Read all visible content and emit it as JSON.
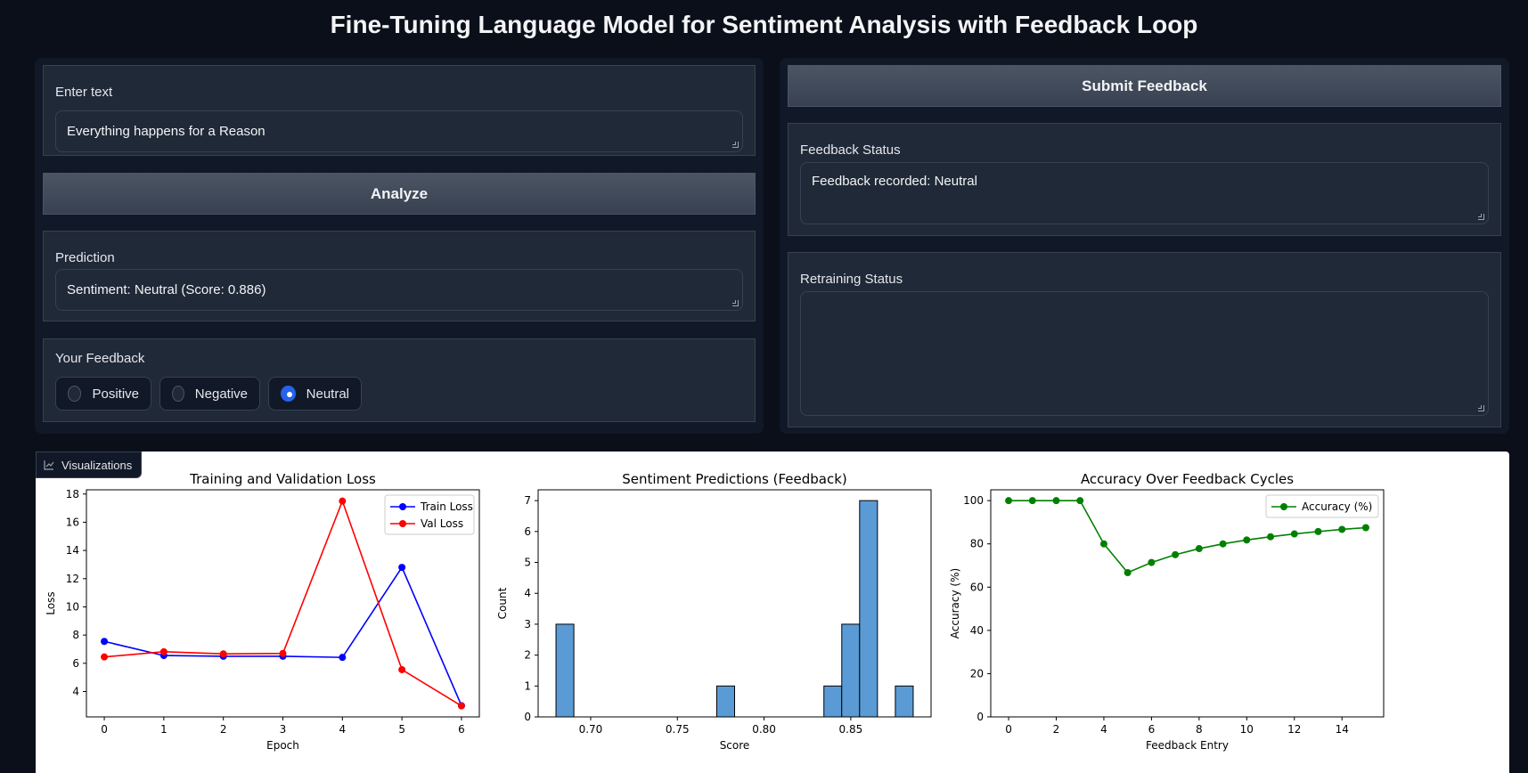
{
  "title": "Fine-Tuning Language Model for Sentiment Analysis with Feedback Loop",
  "input": {
    "label": "Enter text",
    "value": "Everything happens for a Reason"
  },
  "analyze_label": "Analyze",
  "prediction": {
    "label": "Prediction",
    "value": "Sentiment: Neutral (Score: 0.886)"
  },
  "feedback": {
    "label": "Your Feedback",
    "options": [
      "Positive",
      "Negative",
      "Neutral"
    ],
    "selected": "Neutral"
  },
  "submit_label": "Submit Feedback",
  "feedback_status": {
    "label": "Feedback Status",
    "value": "Feedback recorded: Neutral"
  },
  "retraining_status": {
    "label": "Retraining Status",
    "value": ""
  },
  "visualizations_label": "Visualizations",
  "colors": {
    "accent": "#2563eb",
    "train": "#0000ff",
    "val": "#ff0000",
    "hist": "#5a9bd5",
    "acc": "#008000"
  },
  "chart_data": [
    {
      "type": "line",
      "title": "Training and Validation Loss",
      "xlabel": "Epoch",
      "ylabel": "Loss",
      "x": [
        0,
        1,
        2,
        3,
        4,
        5,
        6
      ],
      "xticks": [
        0,
        1,
        2,
        3,
        4,
        5,
        6
      ],
      "yticks": [
        4,
        6,
        8,
        10,
        12,
        14,
        16,
        18
      ],
      "xlim": [
        -0.3,
        6.3
      ],
      "ylim": [
        2.2,
        18.3
      ],
      "series": [
        {
          "name": "Train Loss",
          "values": [
            7.55,
            6.55,
            6.5,
            6.5,
            6.42,
            12.8,
            3.0
          ]
        },
        {
          "name": "Val Loss",
          "values": [
            6.45,
            6.82,
            6.67,
            6.7,
            17.5,
            5.55,
            2.98
          ]
        }
      ],
      "legend": "top-right"
    },
    {
      "type": "bar",
      "title": "Sentiment Predictions (Feedback)",
      "xlabel": "Score",
      "ylabel": "Count",
      "bin_edges": [
        0.68,
        0.6903,
        0.7006,
        0.7109,
        0.7212,
        0.7315,
        0.7418,
        0.7521,
        0.7624,
        0.7727,
        0.783,
        0.7933,
        0.8036,
        0.8139,
        0.8242,
        0.8345,
        0.8448,
        0.8551,
        0.8654,
        0.8757,
        0.886
      ],
      "counts": [
        3,
        0,
        0,
        0,
        0,
        0,
        0,
        0,
        0,
        1,
        0,
        0,
        0,
        0,
        0,
        1,
        3,
        7,
        0,
        1
      ],
      "xticks": [
        0.7,
        0.75,
        0.8,
        0.85
      ],
      "xtick_labels": [
        "0.70",
        "0.75",
        "0.80",
        "0.85"
      ],
      "yticks": [
        0,
        1,
        2,
        3,
        4,
        5,
        6,
        7
      ],
      "xlim": [
        0.6697,
        0.8963
      ],
      "ylim": [
        0,
        7.35
      ]
    },
    {
      "type": "line",
      "title": "Accuracy Over Feedback Cycles",
      "xlabel": "Feedback Entry",
      "ylabel": "Accuracy (%)",
      "x": [
        0,
        1,
        2,
        3,
        4,
        5,
        6,
        7,
        8,
        9,
        10,
        11,
        12,
        13,
        14,
        15
      ],
      "xticks": [
        0,
        2,
        4,
        6,
        8,
        10,
        12,
        14
      ],
      "yticks": [
        0,
        20,
        40,
        60,
        80,
        100
      ],
      "xlim": [
        -0.75,
        15.75
      ],
      "ylim": [
        0,
        105
      ],
      "series": [
        {
          "name": "Accuracy (%)",
          "values": [
            100,
            100,
            100,
            100,
            80,
            66.7,
            71.4,
            75,
            77.8,
            80,
            81.8,
            83.3,
            84.6,
            85.7,
            86.7,
            87.5
          ]
        }
      ],
      "legend": "top-right"
    }
  ]
}
